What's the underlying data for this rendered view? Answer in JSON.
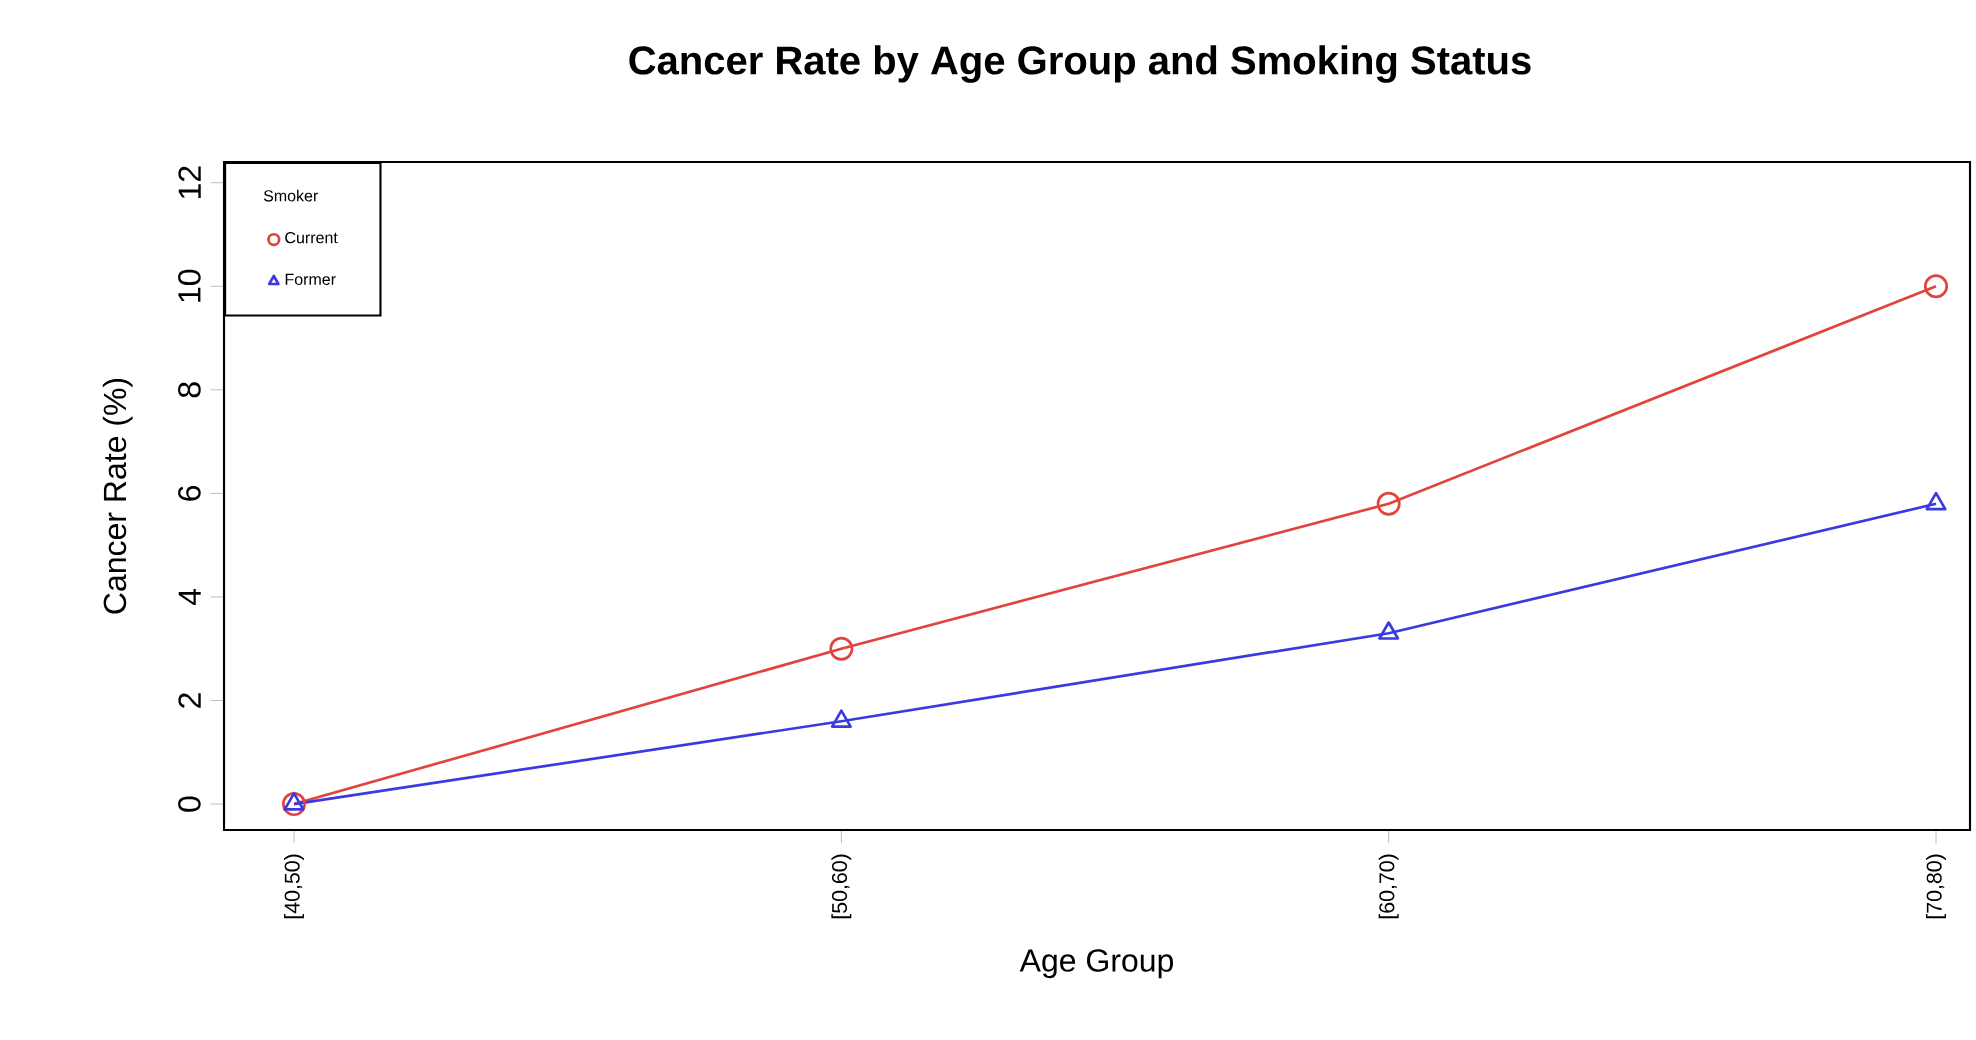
{
  "chart_data": {
    "type": "line",
    "title": "Cancer Rate by Age Group and Smoking Status",
    "xlabel": "Age Group",
    "ylabel": "Cancer Rate (%)",
    "legend_title": "Smoker",
    "categories": [
      "[40,50)",
      "[50,60)",
      "[60,70)",
      "[70,80)"
    ],
    "series": [
      {
        "name": "Current",
        "color": "#e0443c",
        "marker": "circle",
        "values": [
          0,
          3.0,
          5.8,
          10.0
        ]
      },
      {
        "name": "Former",
        "color": "#3a3ae0",
        "marker": "triangle",
        "values": [
          0,
          1.6,
          3.3,
          5.8
        ]
      }
    ],
    "ylim": [
      -0.5,
      12.4
    ],
    "yticks": [
      0,
      2,
      4,
      6,
      8,
      10,
      12
    ],
    "legend": "top left",
    "grid": false,
    "line_style": "solid"
  }
}
